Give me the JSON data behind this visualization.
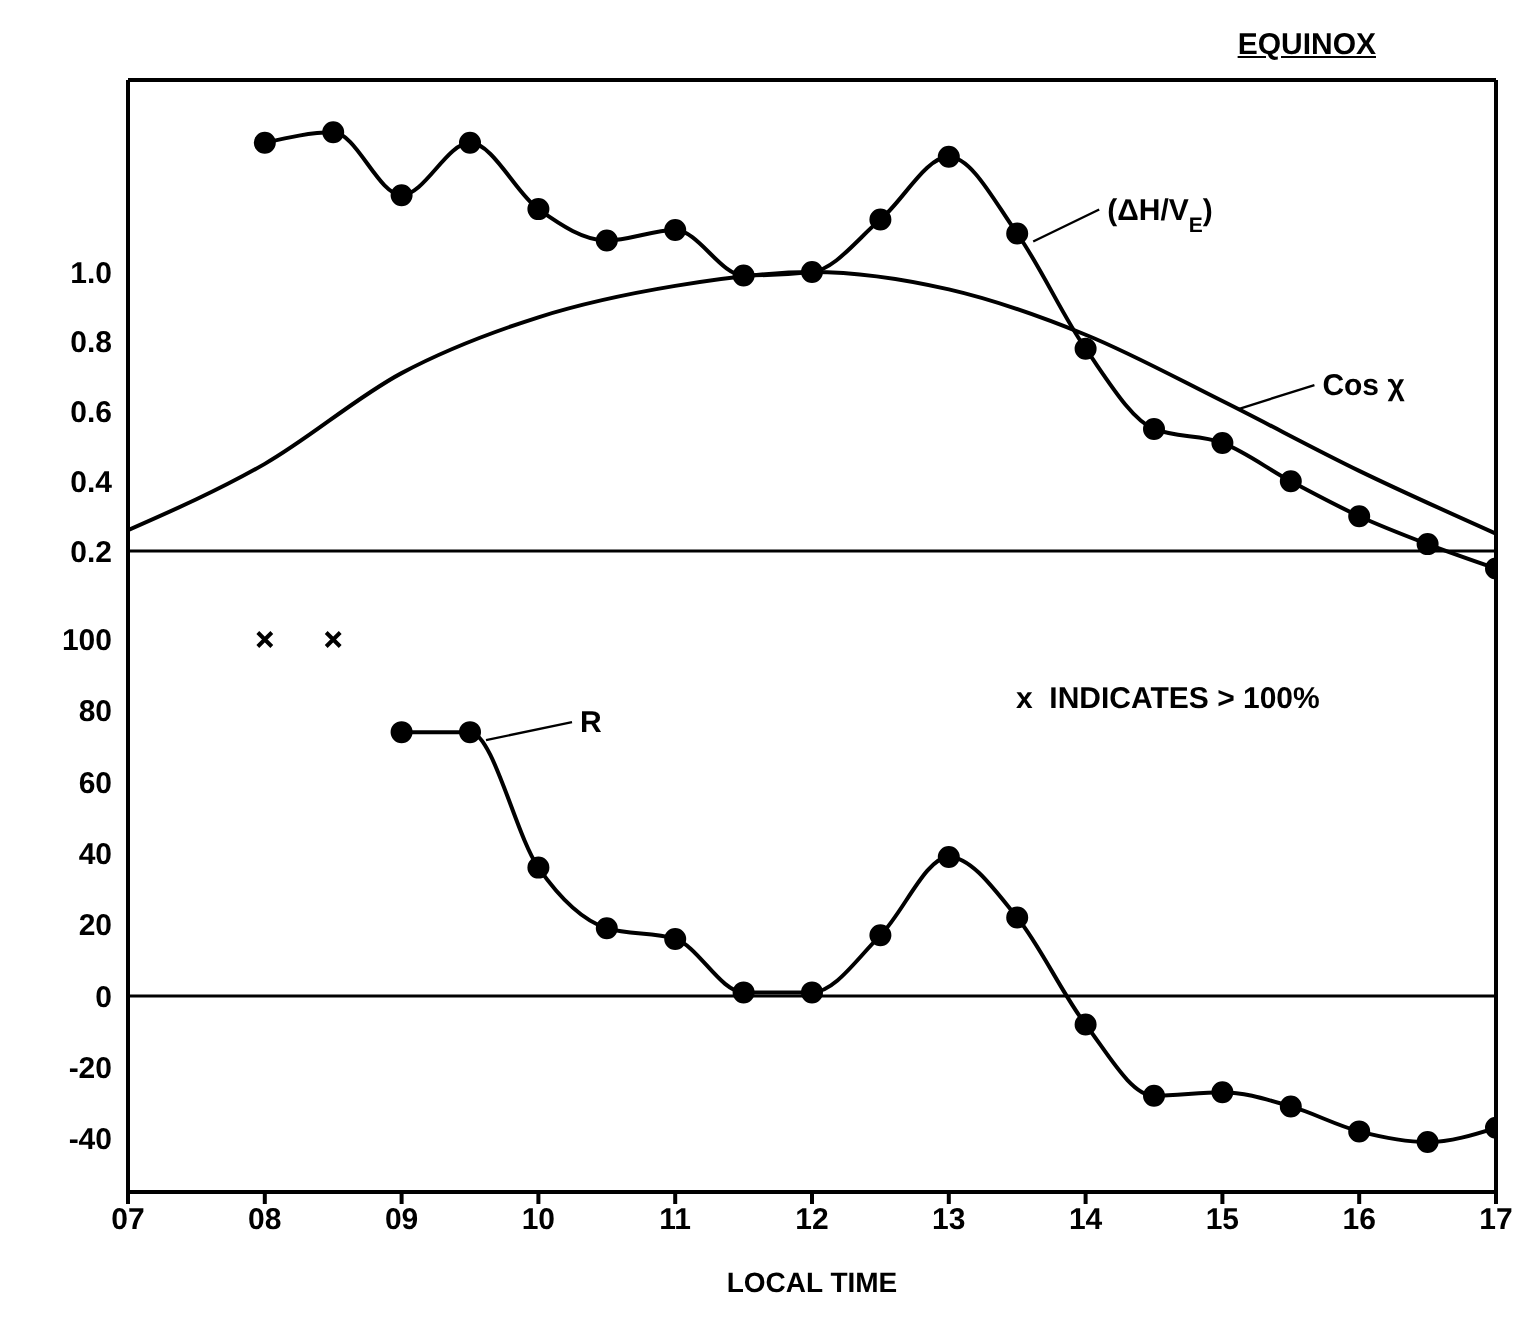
{
  "chart_data": [
    {
      "type": "line",
      "title": "EQUINOX",
      "tick_labels": "y",
      "grid": false,
      "legend": "top right",
      "xlim": [
        7,
        17
      ],
      "ylim": [
        0.1,
        1.55
      ],
      "yticks": [
        0.2,
        0.4,
        0.6,
        0.8,
        {
          "value": 1,
          "label": "1.0"
        }
      ],
      "ref_lines": [
        {
          "axis": "y",
          "value": 0.2
        }
      ],
      "series": [
        {
          "name": "(ΔH/V$_{E}$)",
          "color": "#000000",
          "marker": "circle",
          "x": [
            8,
            8.5,
            9,
            9.5,
            10,
            10.5,
            11,
            11.5,
            12,
            12.5,
            13,
            13.5,
            14,
            14.5,
            15,
            15.5,
            16,
            16.5,
            17
          ],
          "values": [
            1.37,
            1.4,
            1.22,
            1.37,
            1.18,
            1.09,
            1.12,
            0.99,
            1.0,
            1.15,
            1.33,
            1.11,
            0.78,
            0.55,
            0.51,
            0.4,
            0.3,
            0.22,
            0.15
          ]
        },
        {
          "name": "Cos χ",
          "color": "#000000",
          "marker": "none",
          "x": [
            7,
            8,
            9,
            10,
            11,
            12,
            13,
            14,
            15,
            16,
            17
          ],
          "values": [
            0.26,
            0.45,
            0.71,
            0.87,
            0.96,
            1.0,
            0.95,
            0.82,
            0.63,
            0.43,
            0.25
          ]
        }
      ]
    },
    {
      "type": "line",
      "xlabel": "LOCAL TIME",
      "grid": false,
      "xlim": [
        7,
        17
      ],
      "xticks": [
        {
          "value": 7,
          "label": "07"
        },
        {
          "value": 8,
          "label": "08"
        },
        {
          "value": 9,
          "label": "09"
        },
        10,
        11,
        12,
        13,
        14,
        15,
        16,
        17
      ],
      "ylim": [
        -55,
        115
      ],
      "yticks": [
        -40,
        -20,
        0,
        20,
        40,
        60,
        80,
        100
      ],
      "ref_lines": [
        {
          "axis": "y",
          "value": 0
        }
      ],
      "annotations": [
        "x  INDICATES > 100%"
      ],
      "series": [
        {
          "name": "R",
          "color": "#000000",
          "marker": "circle",
          "x": [
            9,
            9.5,
            10,
            10.5,
            11,
            11.5,
            12,
            12.5,
            13,
            13.5,
            14,
            14.5,
            15,
            15.5,
            16,
            16.5,
            17
          ],
          "values": [
            74,
            74,
            36,
            19,
            16,
            1,
            1,
            17,
            39,
            22,
            -8,
            -28,
            -27,
            -31,
            -38,
            -41,
            -37
          ]
        },
        {
          "type": "scatter",
          "color": "#000000",
          "marker": "cross",
          "x": [
            8,
            8.5
          ],
          "values": [
            100,
            100
          ]
        }
      ]
    }
  ]
}
